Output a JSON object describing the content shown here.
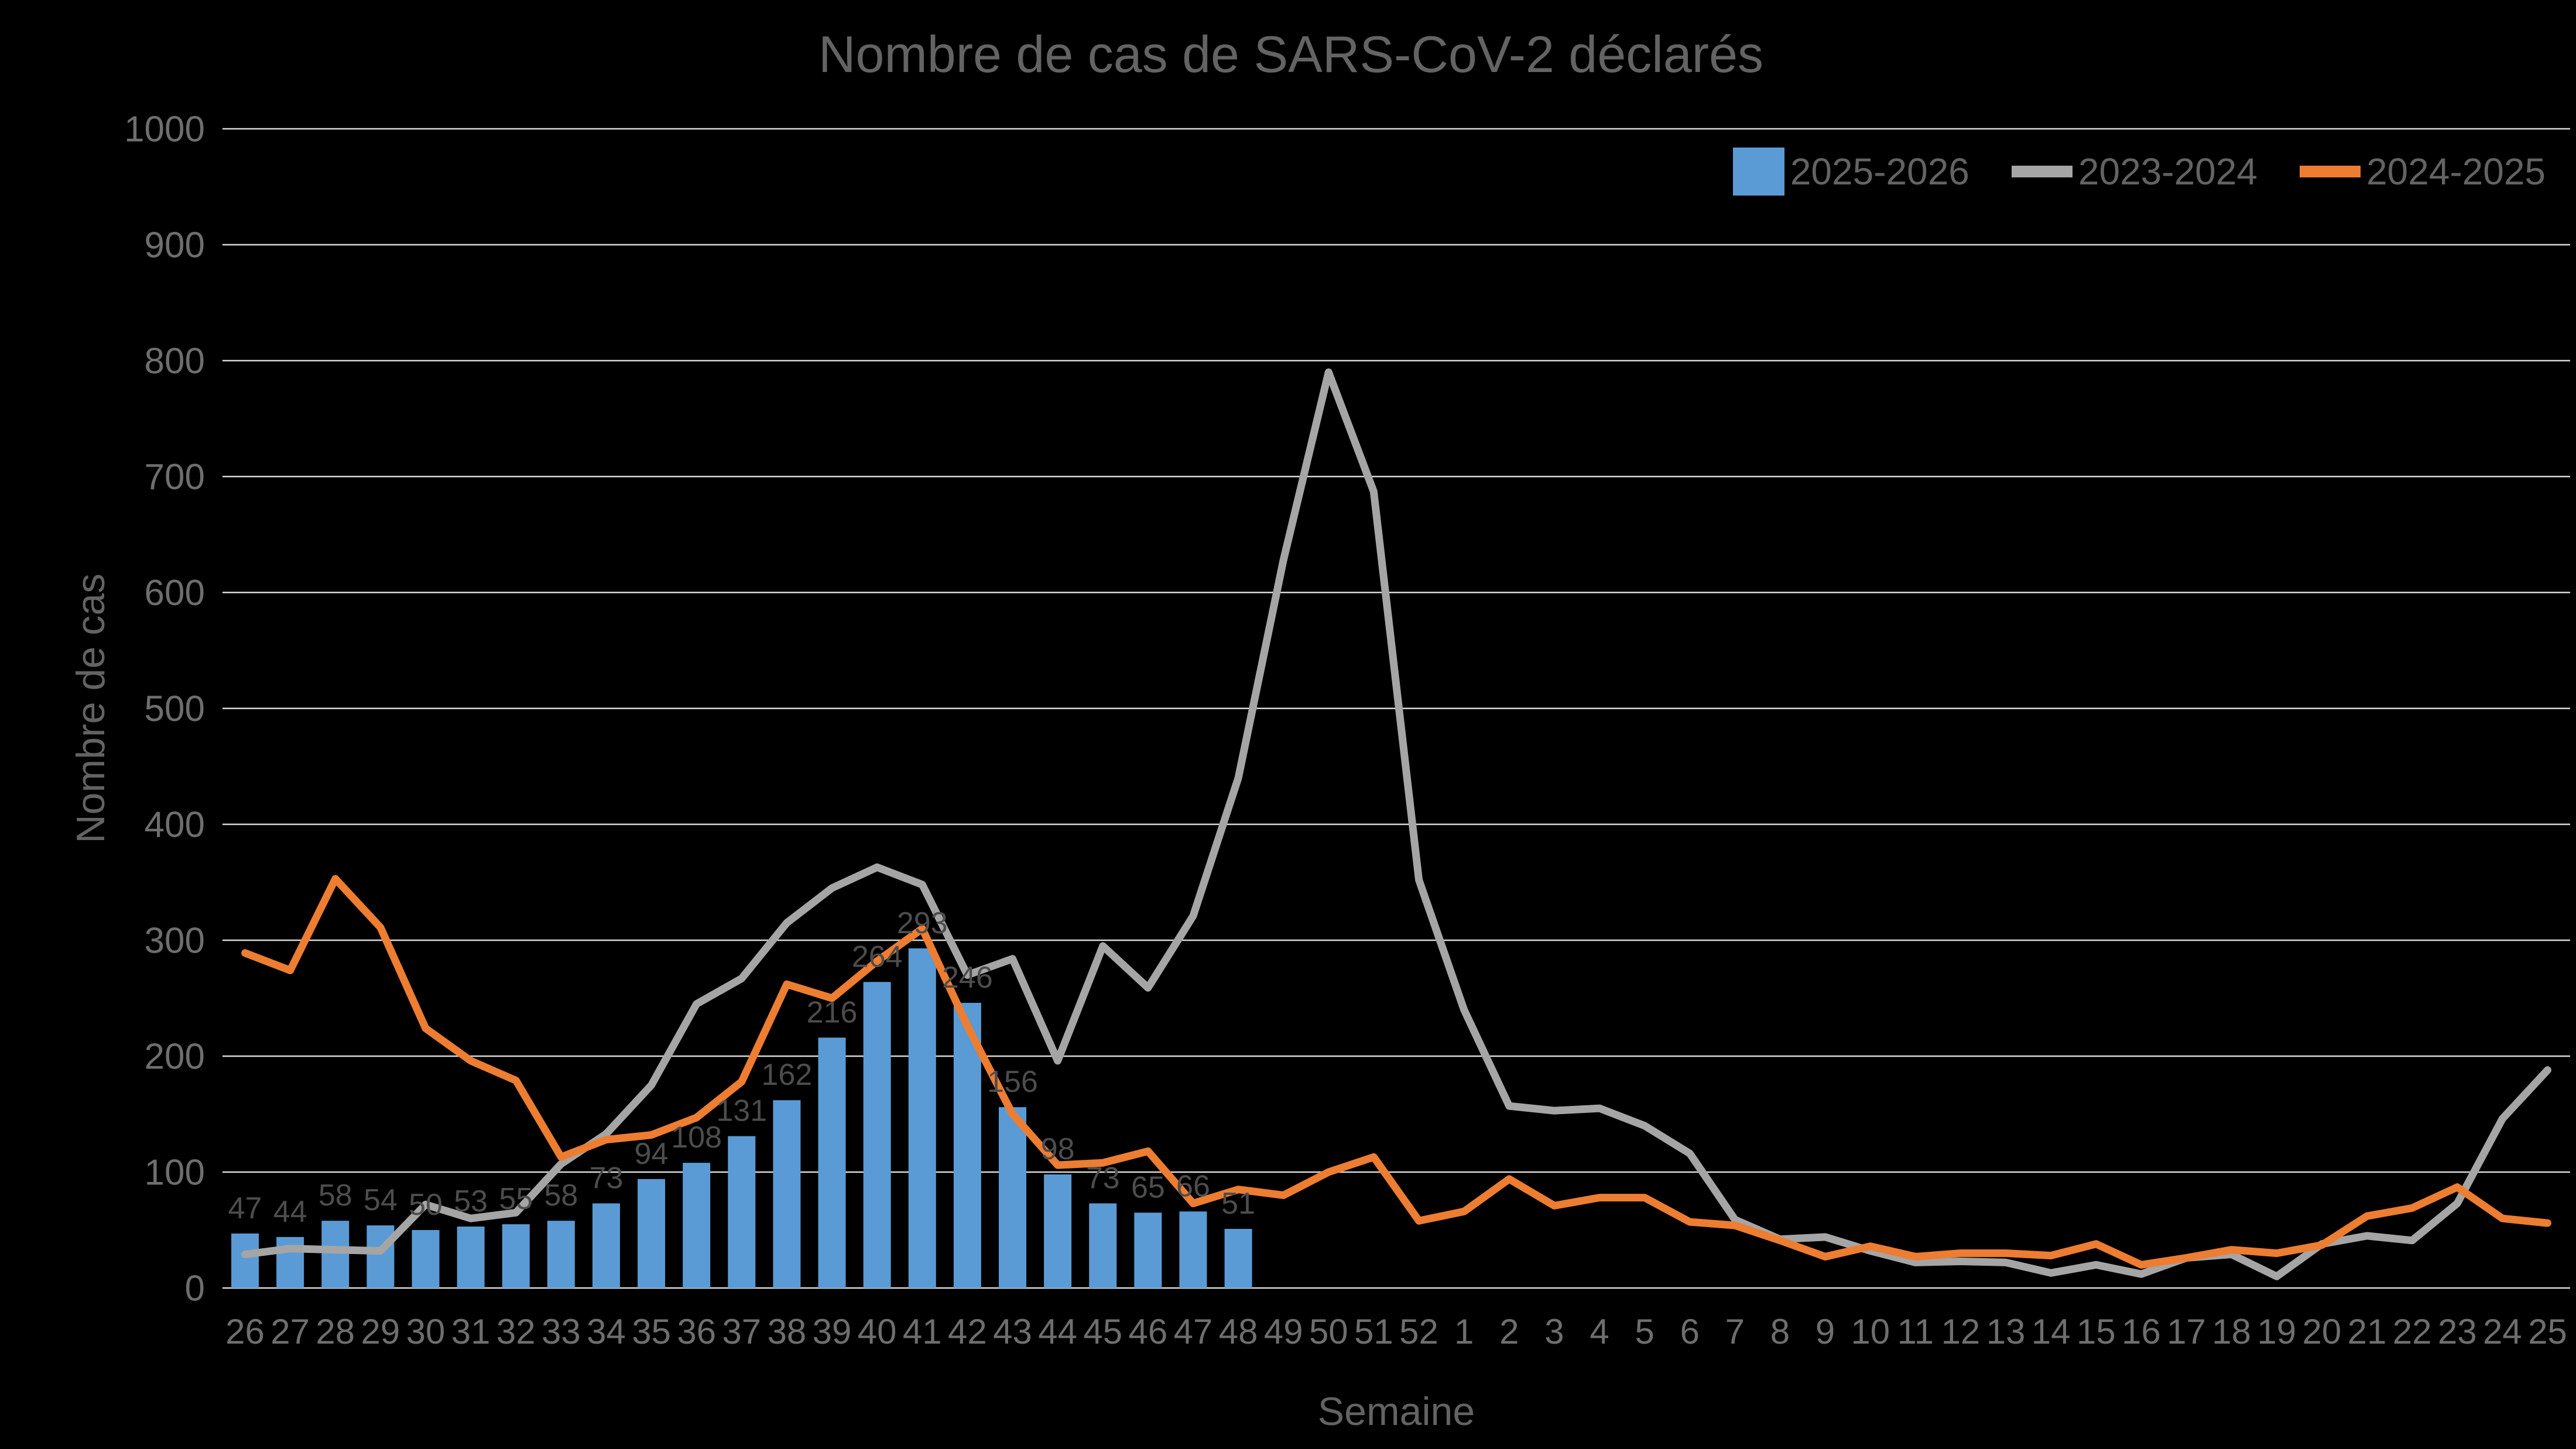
{
  "title": "Nombre de cas de SARS-CoV-2 déclarés",
  "x_axis_title": "Semaine",
  "y_axis_title": "Nombre de cas",
  "colors": {
    "background": "#000000",
    "gridline": "#D9D9D9",
    "title_text": "#636363",
    "legend_text": "#636363",
    "axis_title_text": "#636363",
    "tick_text": "#6E6E6E",
    "data_label_text": "#4D4D4D",
    "bar_fill": "#5B9BD5",
    "gray_line": "#A5A5A5",
    "orange_line": "#ED7D31"
  },
  "chart_data": {
    "type": "combo",
    "title": "Nombre de cas de SARS-CoV-2 déclarés",
    "xlabel": "Semaine",
    "ylabel": "Nombre de cas",
    "ylim": [
      0,
      1000
    ],
    "y_ticks": [
      0,
      100,
      200,
      300,
      400,
      500,
      600,
      700,
      800,
      900,
      1000
    ],
    "grid": true,
    "legend_position": "top-right",
    "categories": [
      "26",
      "27",
      "28",
      "29",
      "30",
      "31",
      "32",
      "33",
      "34",
      "35",
      "36",
      "37",
      "38",
      "39",
      "40",
      "41",
      "42",
      "43",
      "44",
      "45",
      "46",
      "47",
      "48",
      "49",
      "50",
      "51",
      "52",
      "1",
      "2",
      "3",
      "4",
      "5",
      "6",
      "7",
      "8",
      "9",
      "10",
      "11",
      "12",
      "13",
      "14",
      "15",
      "16",
      "17",
      "18",
      "19",
      "20",
      "21",
      "22",
      "23",
      "24",
      "25"
    ],
    "series": [
      {
        "name": "2025-2026",
        "kind": "bar",
        "color": "#5B9BD5",
        "values": [
          47,
          44,
          58,
          54,
          50,
          53,
          55,
          58,
          73,
          94,
          108,
          131,
          162,
          216,
          264,
          293,
          246,
          156,
          98,
          73,
          65,
          66,
          51,
          null,
          null,
          null,
          null,
          null,
          null,
          null,
          null,
          null,
          null,
          null,
          null,
          null,
          null,
          null,
          null,
          null,
          null,
          null,
          null,
          null,
          null,
          null,
          null,
          null,
          null,
          null,
          null,
          null
        ],
        "data_labels": [
          47,
          44,
          58,
          54,
          50,
          53,
          55,
          58,
          73,
          94,
          108,
          131,
          162,
          216,
          264,
          293,
          246,
          156,
          98,
          73,
          65,
          66,
          51
        ]
      },
      {
        "name": "2023-2024",
        "kind": "line",
        "color": "#A5A5A5",
        "values": [
          29,
          34,
          33,
          32,
          72,
          60,
          65,
          107,
          133,
          175,
          245,
          267,
          315,
          345,
          363,
          348,
          270,
          284,
          196,
          295,
          259,
          321,
          440,
          628,
          790,
          687,
          352,
          240,
          157,
          153,
          155,
          140,
          116,
          59,
          42,
          44,
          32,
          22,
          23,
          22,
          13,
          20,
          12,
          26,
          29,
          10,
          38,
          45,
          41,
          73,
          146,
          188
        ]
      },
      {
        "name": "2024-2025",
        "kind": "line",
        "color": "#ED7D31",
        "values": [
          289,
          274,
          353,
          311,
          224,
          196,
          179,
          113,
          128,
          132,
          147,
          178,
          262,
          250,
          282,
          310,
          226,
          150,
          106,
          108,
          118,
          73,
          85,
          80,
          100,
          113,
          58,
          66,
          94,
          71,
          78,
          78,
          57,
          54,
          41,
          27,
          36,
          27,
          30,
          30,
          28,
          38,
          20,
          26,
          33,
          30,
          37,
          62,
          69,
          87,
          60,
          56
        ]
      }
    ]
  }
}
